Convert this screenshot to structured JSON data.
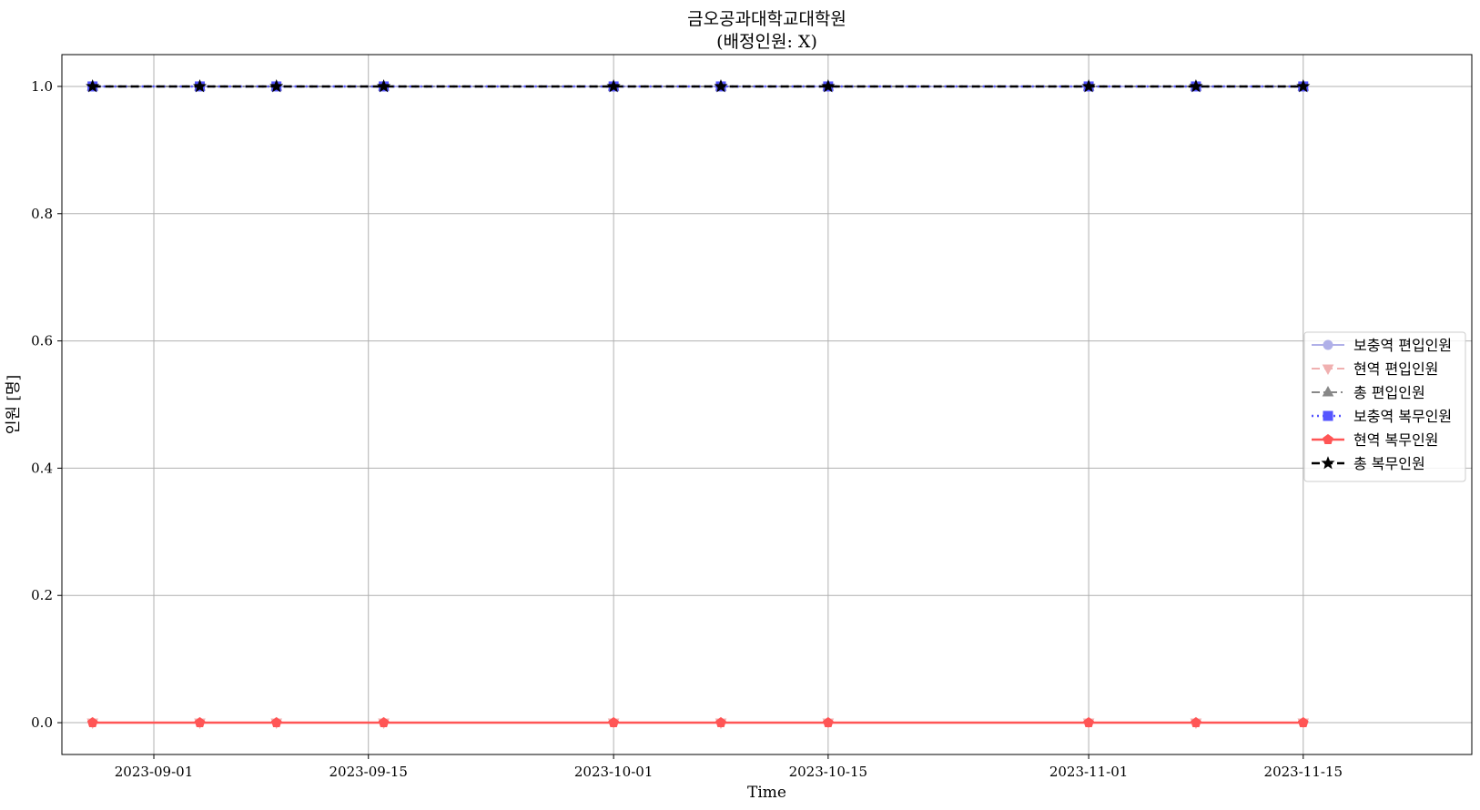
{
  "chart_data": {
    "type": "line",
    "title": "금오공과대학교대학원",
    "subtitle": "(배정인원: X)",
    "xlabel": "Time",
    "ylabel": "인원 [명]",
    "xlim": [
      "2023-08-26",
      "2023-11-26"
    ],
    "ylim": [
      -0.05,
      1.05
    ],
    "grid": true,
    "legend_position": "center-right",
    "x": [
      "2023-08-28",
      "2023-09-04",
      "2023-09-09",
      "2023-09-16",
      "2023-10-01",
      "2023-10-08",
      "2023-10-15",
      "2023-11-01",
      "2023-11-08",
      "2023-11-15"
    ],
    "x_tick_labels": [
      "2023-09-01",
      "2023-09-15",
      "2023-10-01",
      "2023-10-15",
      "2023-11-01",
      "2023-11-15"
    ],
    "y_ticks": [
      0.0,
      0.2,
      0.4,
      0.6,
      0.8,
      1.0
    ],
    "y_tick_labels": [
      "0.0",
      "0.2",
      "0.4",
      "0.6",
      "0.8",
      "1.0"
    ],
    "series": [
      {
        "name": "보충역 편입인원",
        "values": [
          1,
          1,
          1,
          1,
          1,
          1,
          1,
          1,
          1,
          1
        ],
        "color": "#b0b0e8",
        "marker": "circle",
        "dash": "solid",
        "width": 2
      },
      {
        "name": "현역 편입인원",
        "values": [
          0,
          0,
          0,
          0,
          0,
          0,
          0,
          0,
          0,
          0
        ],
        "color": "#f0b0b0",
        "marker": "triangle-down",
        "dash": "dashed",
        "width": 2
      },
      {
        "name": "총 편입인원",
        "values": [
          1,
          1,
          1,
          1,
          1,
          1,
          1,
          1,
          1,
          1
        ],
        "color": "#888888",
        "marker": "triangle-up",
        "dash": "dashdot",
        "width": 2
      },
      {
        "name": "보충역 복무인원",
        "values": [
          1,
          1,
          1,
          1,
          1,
          1,
          1,
          1,
          1,
          1
        ],
        "color": "#5555ff",
        "marker": "square",
        "dash": "dotted",
        "width": 2.5
      },
      {
        "name": "현역 복무인원",
        "values": [
          0,
          0,
          0,
          0,
          0,
          0,
          0,
          0,
          0,
          0
        ],
        "color": "#ff5555",
        "marker": "pentagon",
        "dash": "solid",
        "width": 2.5
      },
      {
        "name": "총 복무인원",
        "values": [
          1,
          1,
          1,
          1,
          1,
          1,
          1,
          1,
          1,
          1
        ],
        "color": "#000000",
        "marker": "star",
        "dash": "dashed",
        "width": 2.5
      }
    ]
  }
}
